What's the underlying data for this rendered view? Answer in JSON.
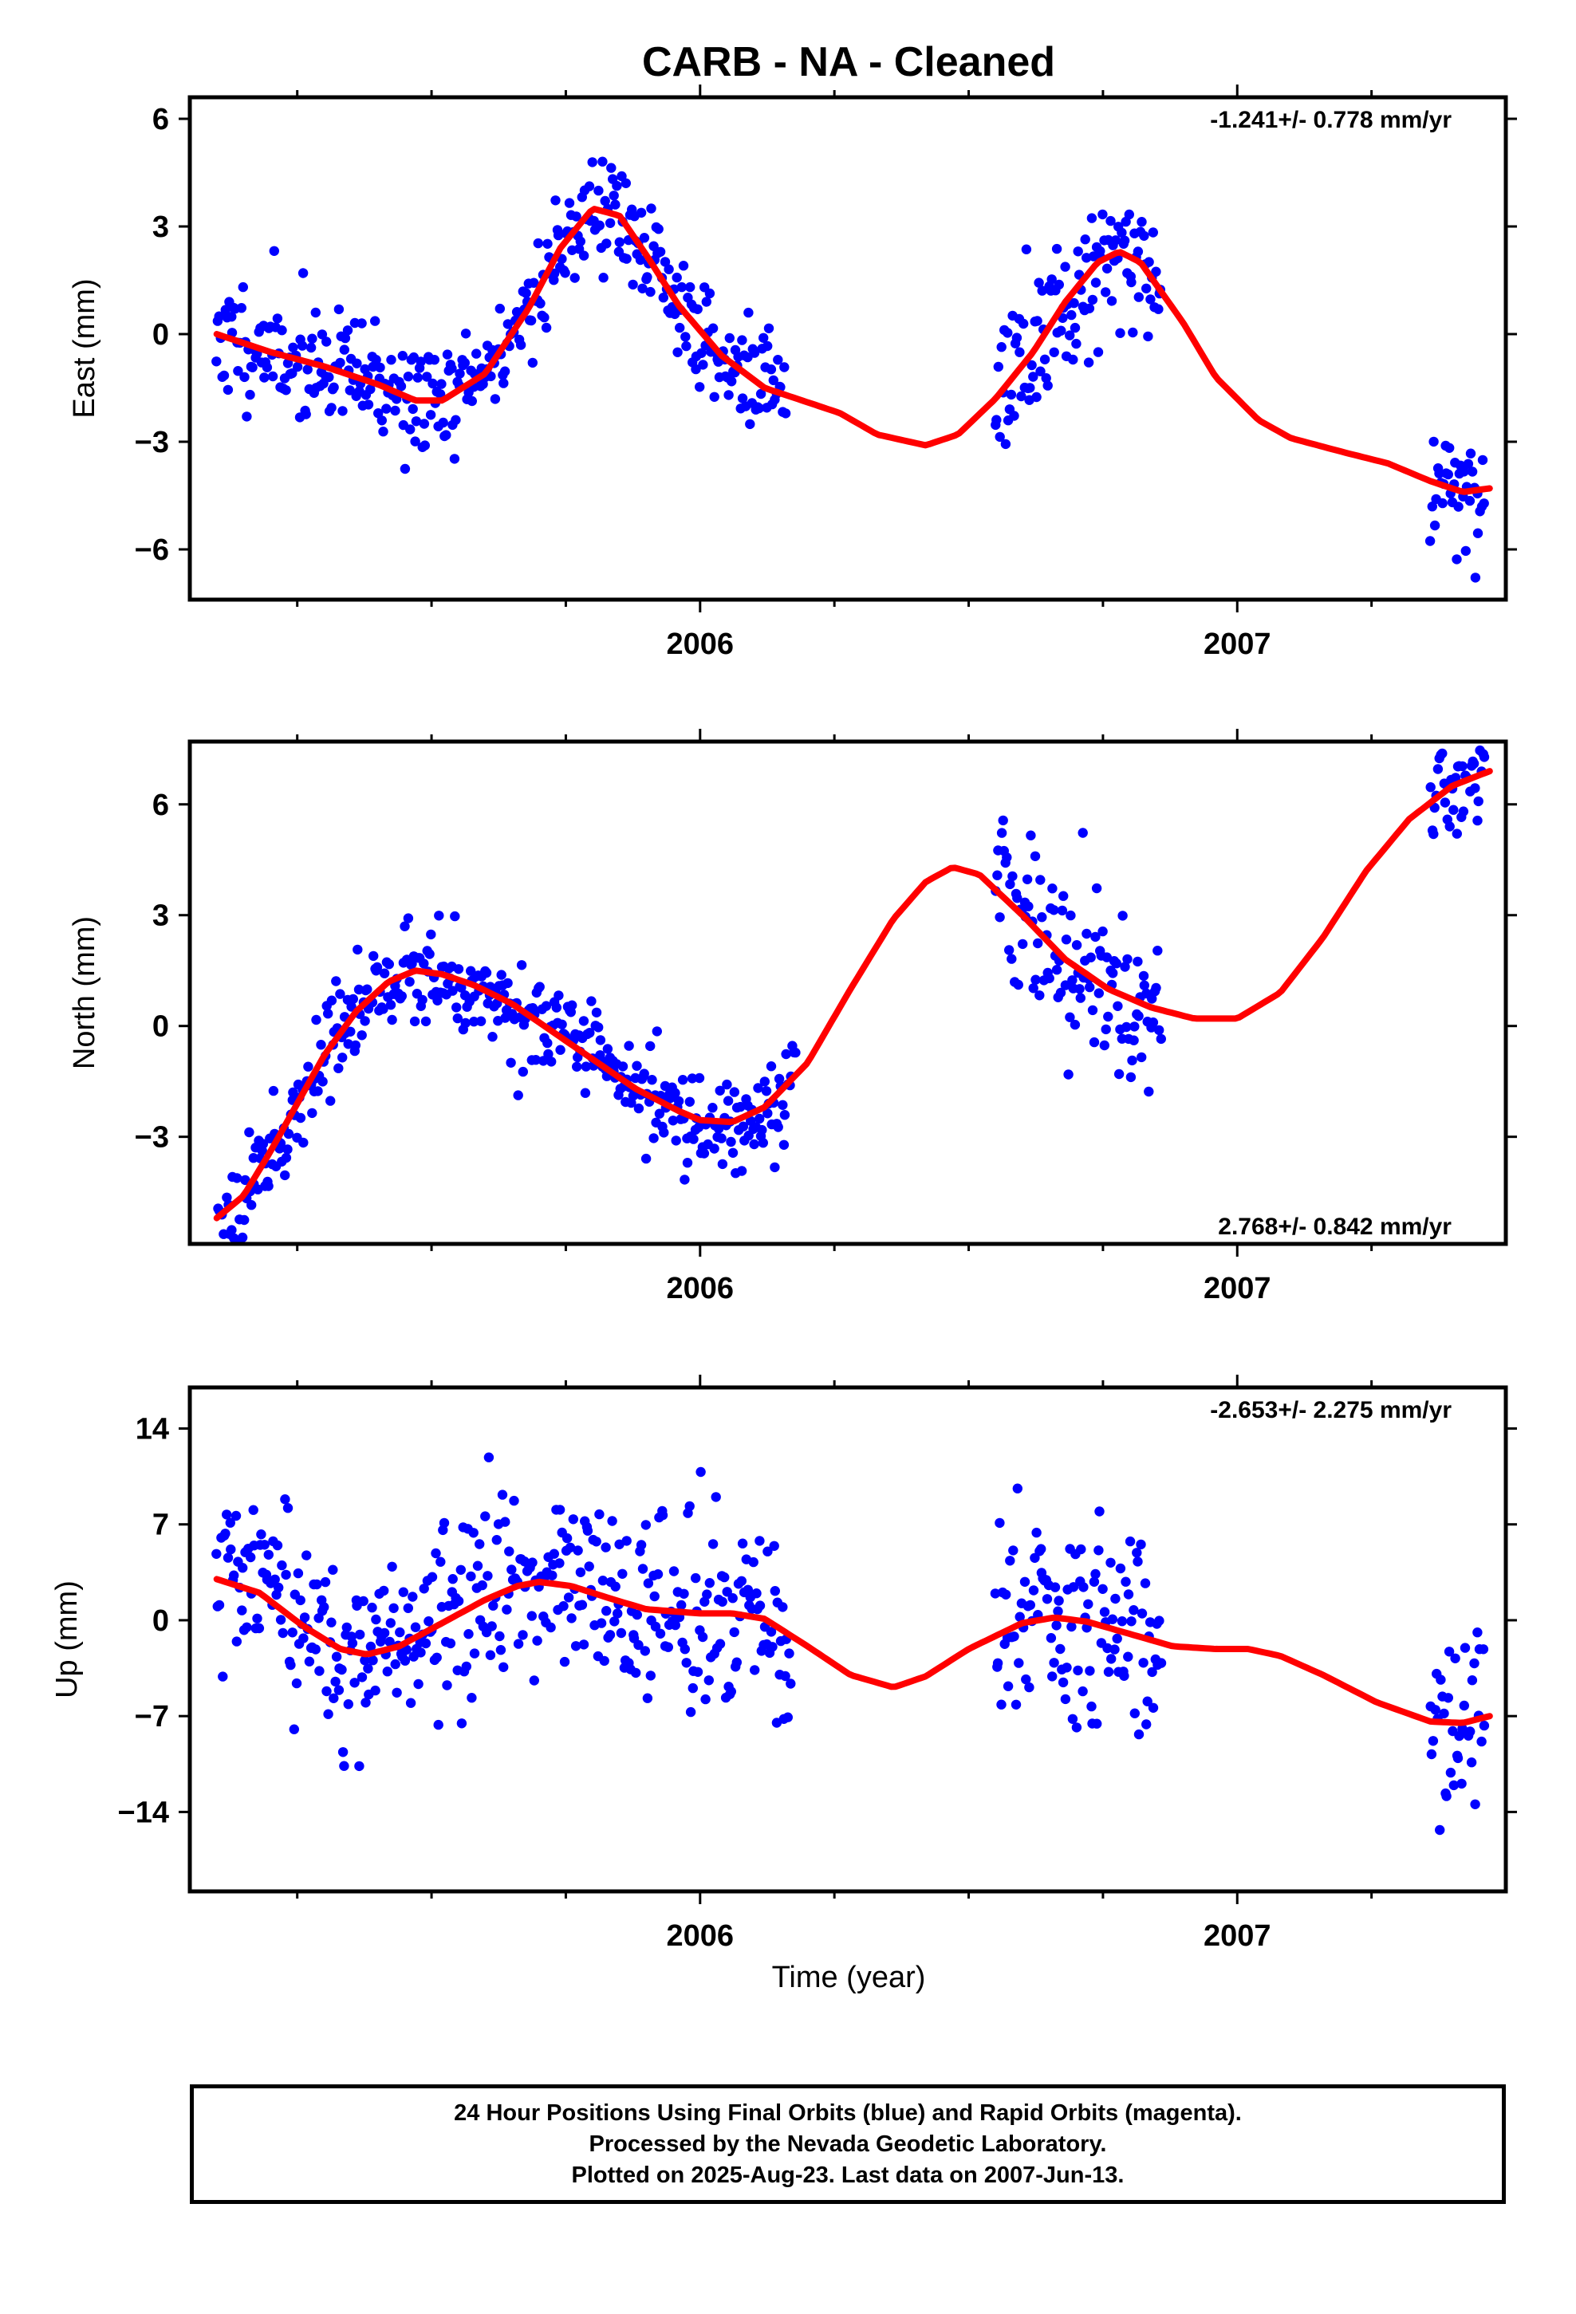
{
  "figure": {
    "title": "CARB  - NA - Cleaned",
    "xlabel": "Time (year)",
    "caption_lines": [
      "24 Hour Positions Using Final Orbits (blue) and Rapid Orbits (magenta).",
      "Processed by the Nevada Geodetic Laboratory.",
      "Plotted on 2025-Aug-23. Last data on 2007-Jun-13."
    ]
  },
  "colors": {
    "final_orbits": "#0000ff",
    "fit": "#ff0000",
    "frame": "#000000"
  },
  "chart_data": [
    {
      "type": "scatter",
      "ylabel": "East (mm)",
      "rate": "-1.241+/- 0.778 mm/yr",
      "xlim": [
        2005.05,
        2007.5
      ],
      "ylim": [
        -7.4,
        6.6
      ],
      "yticks": [
        6,
        3,
        0,
        -3,
        -6
      ],
      "xticks": [
        {
          "value": 2006,
          "label": "2006"
        },
        {
          "value": 2007,
          "label": "2007"
        }
      ],
      "fit": [
        [
          2005.1,
          0.0
        ],
        [
          2005.2,
          -0.5
        ],
        [
          2005.3,
          -0.9
        ],
        [
          2005.4,
          -1.4
        ],
        [
          2005.47,
          -1.85
        ],
        [
          2005.52,
          -1.85
        ],
        [
          2005.6,
          -1.1
        ],
        [
          2005.68,
          0.7
        ],
        [
          2005.74,
          2.4
        ],
        [
          2005.8,
          3.5
        ],
        [
          2005.85,
          3.3
        ],
        [
          2005.9,
          2.2
        ],
        [
          2005.96,
          0.8
        ],
        [
          2006.04,
          -0.6
        ],
        [
          2006.12,
          -1.5
        ],
        [
          2006.2,
          -1.9
        ],
        [
          2006.26,
          -2.2
        ],
        [
          2006.33,
          -2.8
        ],
        [
          2006.42,
          -3.1
        ],
        [
          2006.48,
          -2.8
        ],
        [
          2006.55,
          -1.8
        ],
        [
          2006.62,
          -0.5
        ],
        [
          2006.68,
          0.9
        ],
        [
          2006.74,
          2.0
        ],
        [
          2006.78,
          2.3
        ],
        [
          2006.82,
          2.0
        ],
        [
          2006.9,
          0.3
        ],
        [
          2006.96,
          -1.2
        ],
        [
          2007.04,
          -2.4
        ],
        [
          2007.1,
          -2.9
        ],
        [
          2007.2,
          -3.3
        ],
        [
          2007.28,
          -3.6
        ],
        [
          2007.36,
          -4.1
        ],
        [
          2007.42,
          -4.4
        ],
        [
          2007.47,
          -4.3
        ]
      ],
      "segments": [
        {
          "start": 2005.1,
          "end": 2006.16,
          "step": 0.0027,
          "sigma": 0.8
        },
        {
          "start": 2006.55,
          "end": 2006.86,
          "step": 0.0027,
          "sigma": 1.1
        },
        {
          "start": 2007.36,
          "end": 2007.46,
          "step": 0.0027,
          "sigma": 1.1
        }
      ],
      "seed": 11
    },
    {
      "type": "scatter",
      "ylabel": "North (mm)",
      "rate": "2.768+/- 0.842 mm/yr",
      "xlim": [
        2005.05,
        2007.5
      ],
      "ylim": [
        -5.9,
        7.7
      ],
      "yticks": [
        6,
        3,
        0,
        -3
      ],
      "xticks": [
        {
          "value": 2006,
          "label": "2006"
        },
        {
          "value": 2007,
          "label": "2007"
        }
      ],
      "fit": [
        [
          2005.1,
          -5.2
        ],
        [
          2005.15,
          -4.6
        ],
        [
          2005.2,
          -3.4
        ],
        [
          2005.25,
          -2.1
        ],
        [
          2005.3,
          -0.8
        ],
        [
          2005.36,
          0.4
        ],
        [
          2005.42,
          1.2
        ],
        [
          2005.47,
          1.5
        ],
        [
          2005.52,
          1.4
        ],
        [
          2005.58,
          1.1
        ],
        [
          2005.65,
          0.6
        ],
        [
          2005.72,
          -0.1
        ],
        [
          2005.8,
          -0.9
        ],
        [
          2005.88,
          -1.7
        ],
        [
          2005.96,
          -2.3
        ],
        [
          2006.0,
          -2.55
        ],
        [
          2006.06,
          -2.6
        ],
        [
          2006.12,
          -2.2
        ],
        [
          2006.2,
          -1.0
        ],
        [
          2006.28,
          1.0
        ],
        [
          2006.36,
          2.9
        ],
        [
          2006.42,
          3.9
        ],
        [
          2006.47,
          4.3
        ],
        [
          2006.52,
          4.1
        ],
        [
          2006.6,
          3.0
        ],
        [
          2006.68,
          1.8
        ],
        [
          2006.76,
          1.0
        ],
        [
          2006.84,
          0.5
        ],
        [
          2006.92,
          0.2
        ],
        [
          2007.0,
          0.2
        ],
        [
          2007.08,
          0.9
        ],
        [
          2007.16,
          2.4
        ],
        [
          2007.24,
          4.2
        ],
        [
          2007.32,
          5.6
        ],
        [
          2007.4,
          6.5
        ],
        [
          2007.47,
          6.9
        ]
      ],
      "segments": [
        {
          "start": 2005.1,
          "end": 2006.18,
          "step": 0.0027,
          "sigma": 0.65
        },
        {
          "start": 2006.55,
          "end": 2006.86,
          "step": 0.0027,
          "sigma": 1.1
        },
        {
          "start": 2007.36,
          "end": 2007.46,
          "step": 0.0027,
          "sigma": 0.8
        }
      ],
      "seed": 23
    },
    {
      "type": "scatter",
      "ylabel": "Up (mm)",
      "rate": "-2.653+/- 2.275 mm/yr",
      "xlim": [
        2005.05,
        2007.5
      ],
      "ylim": [
        -19.8,
        17.0
      ],
      "yticks": [
        14,
        7,
        0,
        -7,
        -14
      ],
      "xticks": [
        {
          "value": 2006,
          "label": "2006"
        },
        {
          "value": 2007,
          "label": "2007"
        }
      ],
      "fit": [
        [
          2005.1,
          3.0
        ],
        [
          2005.18,
          2.0
        ],
        [
          2005.26,
          -0.4
        ],
        [
          2005.33,
          -2.1
        ],
        [
          2005.38,
          -2.5
        ],
        [
          2005.44,
          -1.9
        ],
        [
          2005.52,
          -0.2
        ],
        [
          2005.6,
          1.5
        ],
        [
          2005.66,
          2.5
        ],
        [
          2005.7,
          2.8
        ],
        [
          2005.76,
          2.5
        ],
        [
          2005.84,
          1.5
        ],
        [
          2005.9,
          0.8
        ],
        [
          2006.0,
          0.5
        ],
        [
          2006.06,
          0.5
        ],
        [
          2006.12,
          0.1
        ],
        [
          2006.2,
          -1.9
        ],
        [
          2006.28,
          -4.0
        ],
        [
          2006.36,
          -4.9
        ],
        [
          2006.42,
          -4.1
        ],
        [
          2006.5,
          -2.1
        ],
        [
          2006.6,
          -0.2
        ],
        [
          2006.66,
          0.2
        ],
        [
          2006.72,
          -0.1
        ],
        [
          2006.8,
          -1.0
        ],
        [
          2006.88,
          -1.9
        ],
        [
          2006.96,
          -2.1
        ],
        [
          2007.02,
          -2.1
        ],
        [
          2007.08,
          -2.6
        ],
        [
          2007.16,
          -4.0
        ],
        [
          2007.26,
          -6.0
        ],
        [
          2007.36,
          -7.4
        ],
        [
          2007.42,
          -7.5
        ],
        [
          2007.47,
          -7.0
        ]
      ],
      "segments": [
        {
          "start": 2005.1,
          "end": 2006.17,
          "step": 0.0027,
          "sigma": 3.4
        },
        {
          "start": 2006.55,
          "end": 2006.86,
          "step": 0.0027,
          "sigma": 3.6
        },
        {
          "start": 2007.36,
          "end": 2007.46,
          "step": 0.0027,
          "sigma": 4.0
        }
      ],
      "seed": 37
    }
  ]
}
